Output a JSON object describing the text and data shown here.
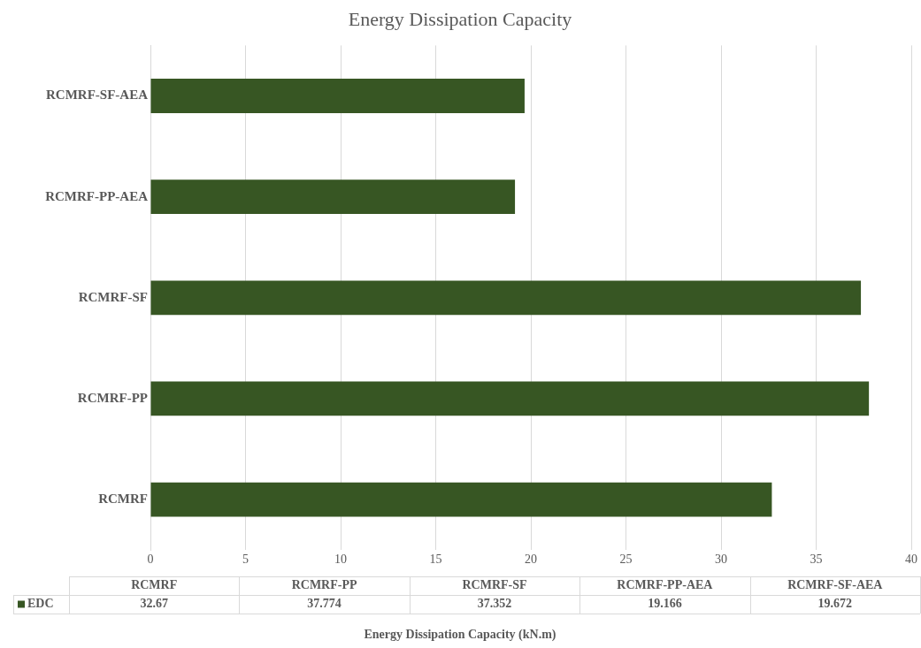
{
  "chart_data": {
    "type": "bar",
    "orientation": "horizontal",
    "title": "Energy Dissipation Capacity",
    "xlabel": "Energy Dissipation Capacity (kN.m)",
    "categories": [
      "RCMRF-SF-AEA",
      "RCMRF-PP-AEA",
      "RCMRF-SF",
      "RCMRF-PP",
      "RCMRF"
    ],
    "series": [
      {
        "name": "EDC",
        "color": "#375623",
        "values": [
          19.672,
          19.166,
          37.352,
          37.774,
          32.67
        ]
      }
    ],
    "annotations": [
      "32.67",
      "37.774",
      "37.352",
      "19.166",
      "19.672"
    ],
    "xlim": [
      0,
      40
    ],
    "xticks": [
      0,
      5,
      10,
      15,
      20,
      25,
      30,
      35,
      40
    ],
    "grid": "x",
    "legend": "bottom"
  }
}
